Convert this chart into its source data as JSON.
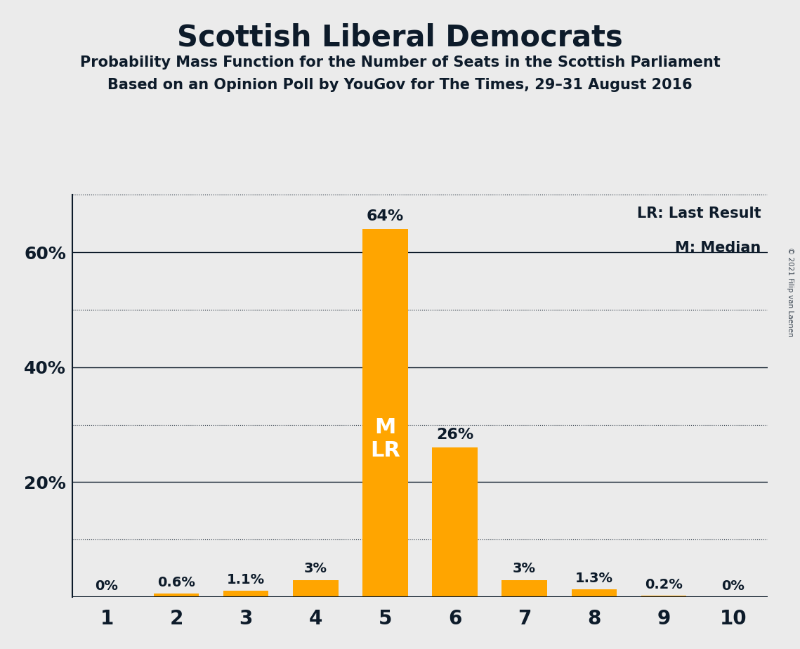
{
  "title": "Scottish Liberal Democrats",
  "subtitle1": "Probability Mass Function for the Number of Seats in the Scottish Parliament",
  "subtitle2": "Based on an Opinion Poll by YouGov for The Times, 29–31 August 2016",
  "copyright": "© 2021 Filip van Laenen",
  "categories": [
    1,
    2,
    3,
    4,
    5,
    6,
    7,
    8,
    9,
    10
  ],
  "values": [
    0.0,
    0.6,
    1.1,
    3.0,
    64.0,
    26.0,
    3.0,
    1.3,
    0.2,
    0.0
  ],
  "labels": [
    "0%",
    "0.6%",
    "1.1%",
    "3%",
    "64%",
    "26%",
    "3%",
    "1.3%",
    "0.2%",
    "0%"
  ],
  "bar_color": "#FFA500",
  "background_color": "#EBEBEB",
  "text_color": "#0D1B2A",
  "legend_lr": "LR: Last Result",
  "legend_m": "M: Median",
  "bar_label_inside": "M\nLR",
  "bar_label_inside_bar": 5,
  "ylim": [
    0,
    70
  ],
  "yticks": [
    20,
    40,
    60
  ],
  "ytick_labels": [
    "20%",
    "40%",
    "60%"
  ],
  "solid_gridlines": [
    20,
    40,
    60
  ],
  "dotted_gridlines": [
    10,
    30,
    50,
    70
  ],
  "bar_width": 0.65
}
